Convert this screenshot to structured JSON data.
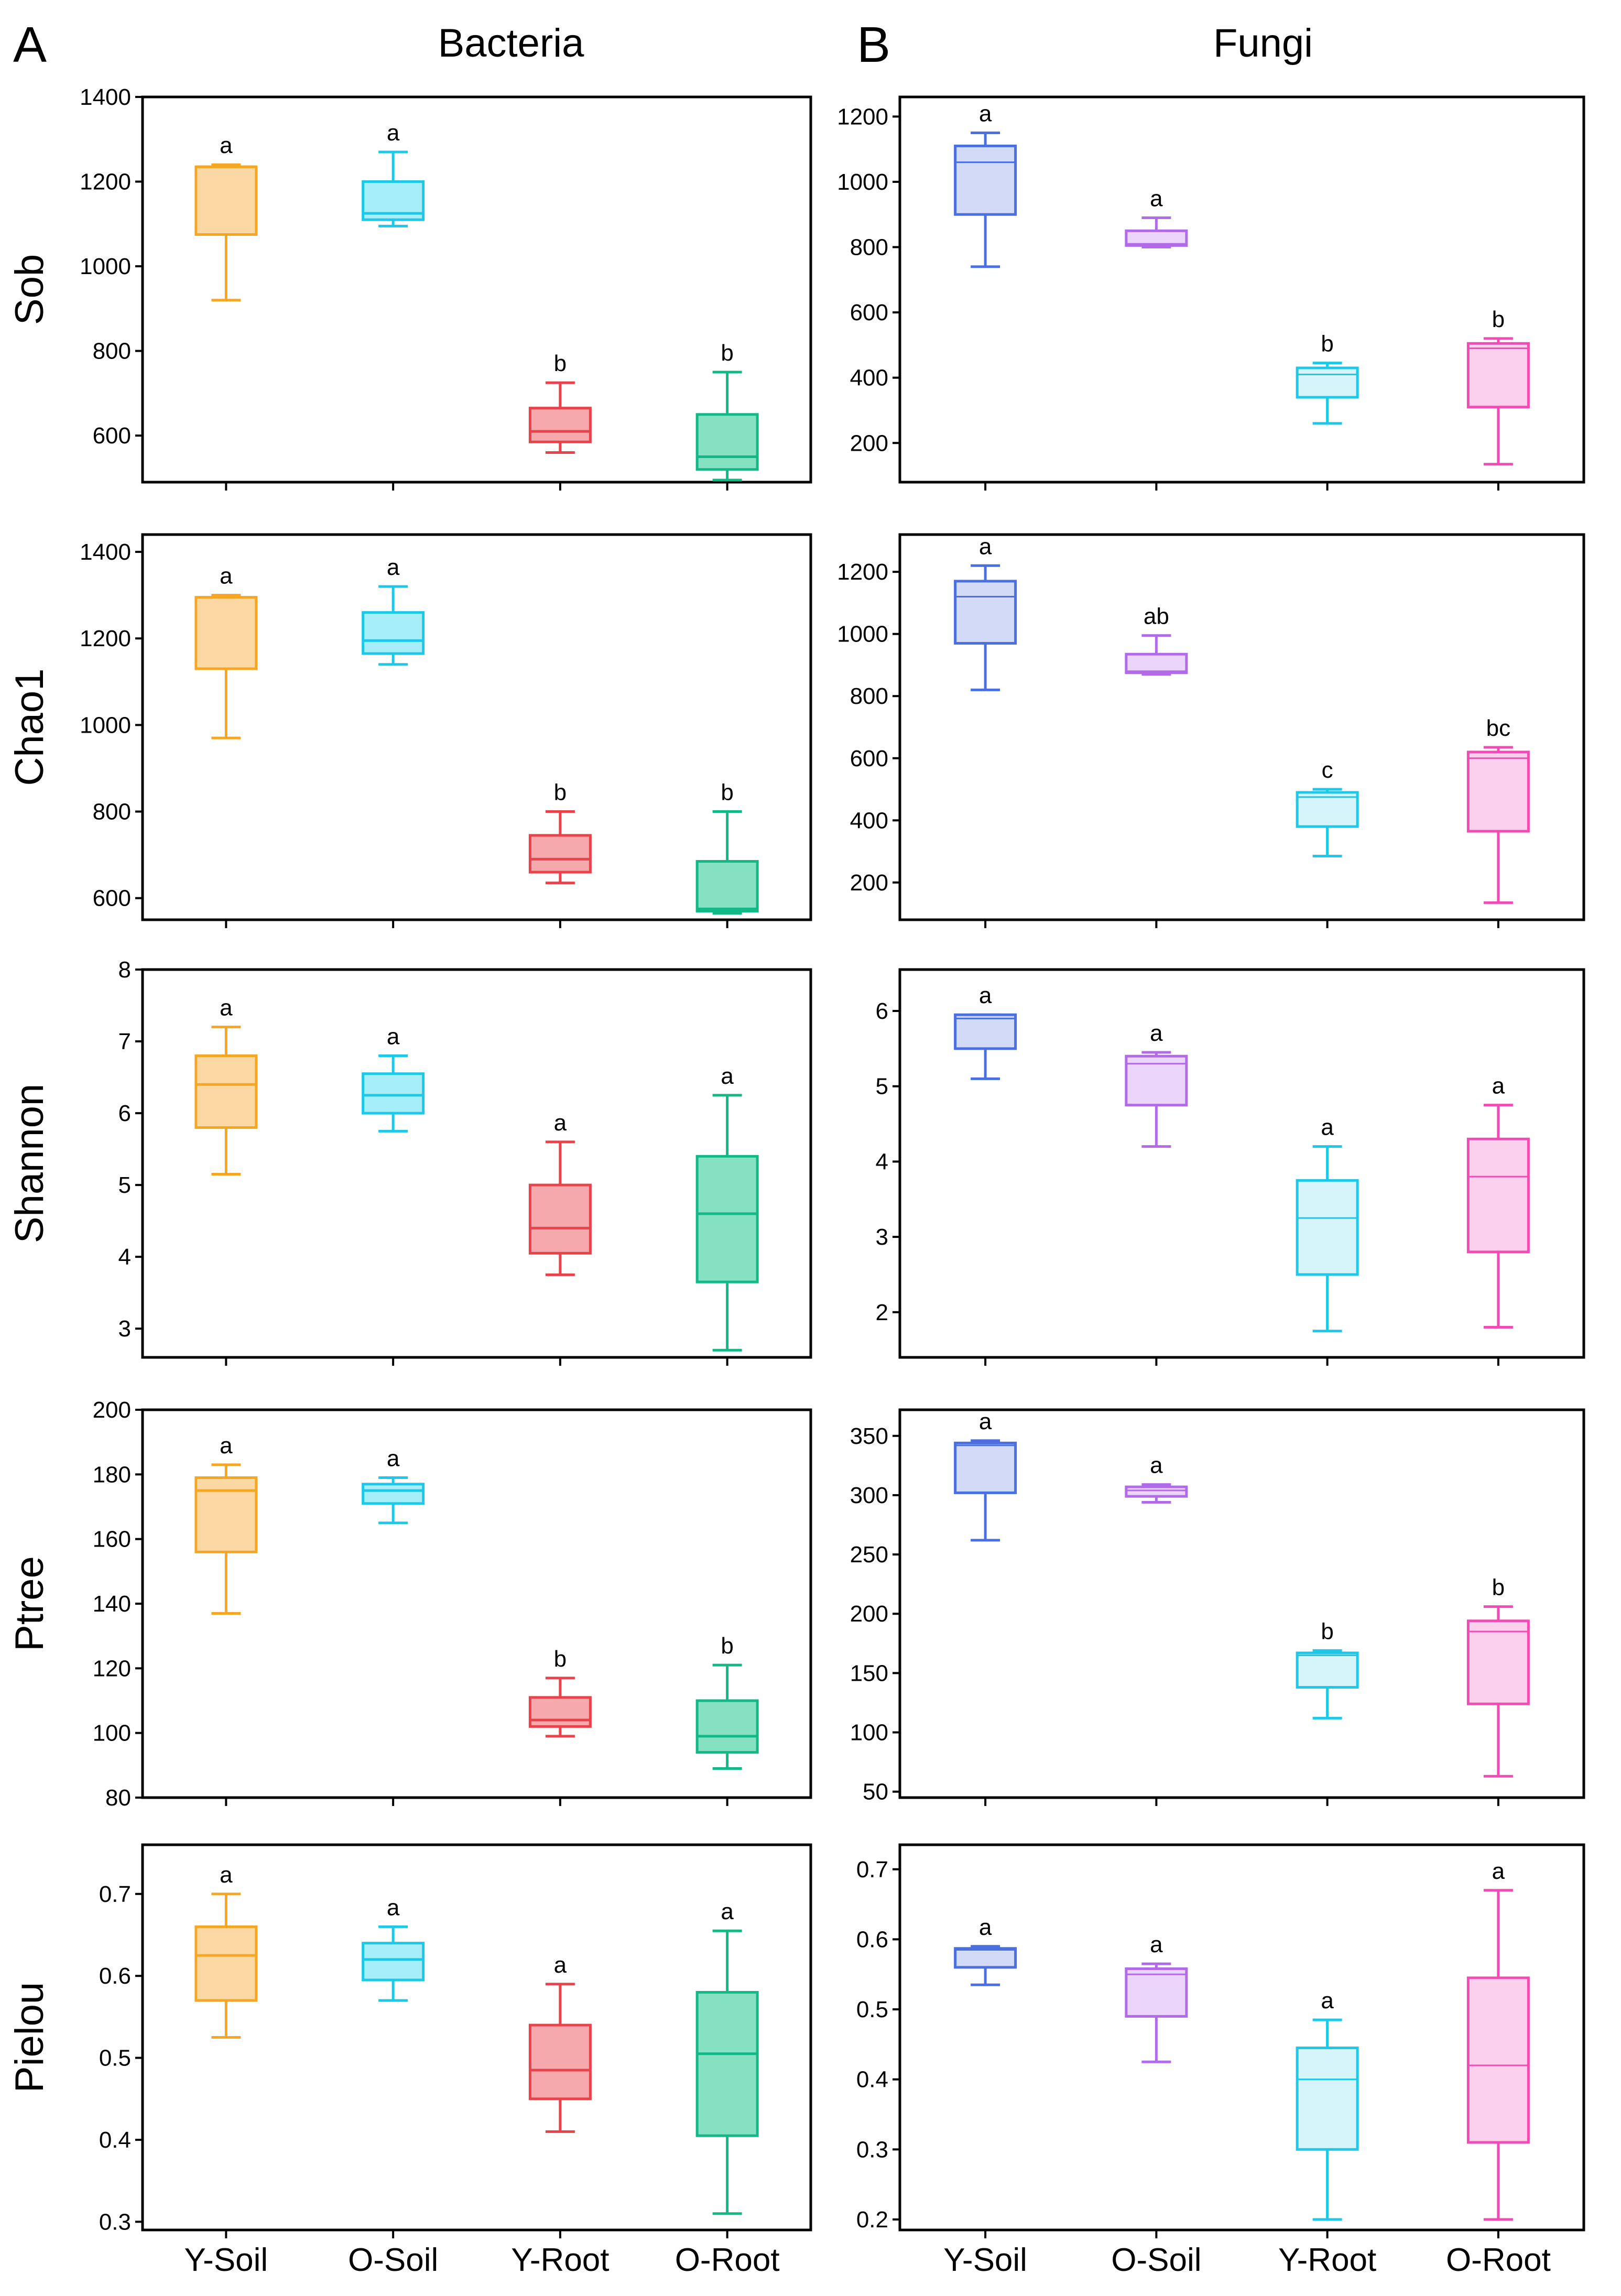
{
  "columns": [
    {
      "letter": "A",
      "title": "Bacteria"
    },
    {
      "letter": "B",
      "title": "Fungi"
    }
  ],
  "rows": [
    "Sob",
    "Chao1",
    "Shannon",
    "Ptree",
    "Pielou"
  ],
  "categories": [
    "Y-Soil",
    "O-Soil",
    "Y-Root",
    "O-Root"
  ],
  "colors": {
    "bacteria": [
      "#F5A623",
      "#1EC8E8",
      "#E8424A",
      "#12B886"
    ],
    "bacteria_fill": [
      "#FCD9A4",
      "#A6EEF8",
      "#F6A9AD",
      "#86E0C2"
    ],
    "fungi": [
      "#4A6FE0",
      "#B26BE8",
      "#1EC8E8",
      "#F04CB4"
    ],
    "fungi_fill": [
      "#D2DAF8",
      "#EBD5FA",
      "#D6F5FB",
      "#FBD0EC"
    ]
  },
  "chart_data": [
    {
      "type": "box",
      "column": "Bacteria",
      "metric": "Sob",
      "ylabel": "Sob",
      "ylim": [
        490,
        1400
      ],
      "yticks": [
        600,
        800,
        1000,
        1200,
        1400
      ],
      "categories": [
        "Y-Soil",
        "O-Soil",
        "Y-Root",
        "O-Root"
      ],
      "boxes": [
        {
          "min": 920,
          "q1": 1075,
          "median": 1235,
          "q3": 1235,
          "max": 1240,
          "letter": "a"
        },
        {
          "min": 1095,
          "q1": 1110,
          "median": 1125,
          "q3": 1200,
          "max": 1270,
          "letter": "a"
        },
        {
          "min": 560,
          "q1": 585,
          "median": 610,
          "q3": 665,
          "max": 725,
          "letter": "b"
        },
        {
          "min": 495,
          "q1": 520,
          "median": 550,
          "q3": 650,
          "max": 750,
          "letter": "b"
        }
      ]
    },
    {
      "type": "box",
      "column": "Bacteria",
      "metric": "Chao1",
      "ylabel": "Chao1",
      "ylim": [
        550,
        1440
      ],
      "yticks": [
        600,
        800,
        1000,
        1200,
        1400
      ],
      "categories": [
        "Y-Soil",
        "O-Soil",
        "Y-Root",
        "O-Root"
      ],
      "boxes": [
        {
          "min": 970,
          "q1": 1130,
          "median": 1295,
          "q3": 1295,
          "max": 1300,
          "letter": "a"
        },
        {
          "min": 1140,
          "q1": 1165,
          "median": 1195,
          "q3": 1260,
          "max": 1320,
          "letter": "a"
        },
        {
          "min": 635,
          "q1": 660,
          "median": 690,
          "q3": 745,
          "max": 800,
          "letter": "b"
        },
        {
          "min": 565,
          "q1": 570,
          "median": 575,
          "q3": 685,
          "max": 800,
          "letter": "b"
        }
      ]
    },
    {
      "type": "box",
      "column": "Bacteria",
      "metric": "Shannon",
      "ylabel": "Shannon",
      "ylim": [
        2.6,
        8
      ],
      "yticks": [
        3,
        4,
        5,
        6,
        7,
        8
      ],
      "categories": [
        "Y-Soil",
        "O-Soil",
        "Y-Root",
        "O-Root"
      ],
      "boxes": [
        {
          "min": 5.15,
          "q1": 5.8,
          "median": 6.4,
          "q3": 6.8,
          "max": 7.2,
          "letter": "a"
        },
        {
          "min": 5.75,
          "q1": 6.0,
          "median": 6.25,
          "q3": 6.55,
          "max": 6.8,
          "letter": "a"
        },
        {
          "min": 3.75,
          "q1": 4.05,
          "median": 4.4,
          "q3": 5.0,
          "max": 5.6,
          "letter": "a"
        },
        {
          "min": 2.7,
          "q1": 3.65,
          "median": 4.6,
          "q3": 5.4,
          "max": 6.25,
          "letter": "a"
        }
      ]
    },
    {
      "type": "box",
      "column": "Bacteria",
      "metric": "Ptree",
      "ylabel": "Ptree",
      "ylim": [
        80,
        200
      ],
      "yticks": [
        80,
        100,
        120,
        140,
        160,
        180,
        200
      ],
      "categories": [
        "Y-Soil",
        "O-Soil",
        "Y-Root",
        "O-Root"
      ],
      "boxes": [
        {
          "min": 137,
          "q1": 156,
          "median": 175,
          "q3": 179,
          "max": 183,
          "letter": "a"
        },
        {
          "min": 165,
          "q1": 171,
          "median": 175,
          "q3": 177,
          "max": 179,
          "letter": "a"
        },
        {
          "min": 99,
          "q1": 102,
          "median": 104,
          "q3": 111,
          "max": 117,
          "letter": "b"
        },
        {
          "min": 89,
          "q1": 94,
          "median": 99,
          "q3": 110,
          "max": 121,
          "letter": "b"
        }
      ]
    },
    {
      "type": "box",
      "column": "Bacteria",
      "metric": "Pielou",
      "ylabel": "Pielou",
      "ylim": [
        0.29,
        0.76
      ],
      "yticks": [
        0.3,
        0.4,
        0.5,
        0.6,
        0.7
      ],
      "categories": [
        "Y-Soil",
        "O-Soil",
        "Y-Root",
        "O-Root"
      ],
      "boxes": [
        {
          "min": 0.525,
          "q1": 0.57,
          "median": 0.625,
          "q3": 0.66,
          "max": 0.7,
          "letter": "a"
        },
        {
          "min": 0.57,
          "q1": 0.595,
          "median": 0.62,
          "q3": 0.64,
          "max": 0.66,
          "letter": "a"
        },
        {
          "min": 0.41,
          "q1": 0.45,
          "median": 0.485,
          "q3": 0.54,
          "max": 0.59,
          "letter": "a"
        },
        {
          "min": 0.31,
          "q1": 0.405,
          "median": 0.505,
          "q3": 0.58,
          "max": 0.655,
          "letter": "a"
        }
      ]
    },
    {
      "type": "box",
      "column": "Fungi",
      "metric": "Sob",
      "ylabel": "",
      "ylim": [
        80,
        1260
      ],
      "yticks": [
        200,
        400,
        600,
        800,
        1000,
        1200
      ],
      "categories": [
        "Y-Soil",
        "O-Soil",
        "Y-Root",
        "O-Root"
      ],
      "boxes": [
        {
          "min": 740,
          "q1": 900,
          "median": 1060,
          "q3": 1110,
          "max": 1150,
          "letter": "a"
        },
        {
          "min": 800,
          "q1": 805,
          "median": 810,
          "q3": 850,
          "max": 890,
          "letter": "a"
        },
        {
          "min": 260,
          "q1": 340,
          "median": 410,
          "q3": 430,
          "max": 445,
          "letter": "b"
        },
        {
          "min": 135,
          "q1": 310,
          "median": 490,
          "q3": 505,
          "max": 520,
          "letter": "b"
        }
      ]
    },
    {
      "type": "box",
      "column": "Fungi",
      "metric": "Chao1",
      "ylabel": "",
      "ylim": [
        80,
        1320
      ],
      "yticks": [
        200,
        400,
        600,
        800,
        1000,
        1200
      ],
      "categories": [
        "Y-Soil",
        "O-Soil",
        "Y-Root",
        "O-Root"
      ],
      "boxes": [
        {
          "min": 820,
          "q1": 970,
          "median": 1120,
          "q3": 1170,
          "max": 1220,
          "letter": "a"
        },
        {
          "min": 870,
          "q1": 875,
          "median": 880,
          "q3": 935,
          "max": 995,
          "letter": "ab"
        },
        {
          "min": 285,
          "q1": 380,
          "median": 475,
          "q3": 490,
          "max": 500,
          "letter": "c"
        },
        {
          "min": 135,
          "q1": 365,
          "median": 600,
          "q3": 620,
          "max": 635,
          "letter": "bc"
        }
      ]
    },
    {
      "type": "box",
      "column": "Fungi",
      "metric": "Shannon",
      "ylabel": "",
      "ylim": [
        1.4,
        6.55
      ],
      "yticks": [
        2,
        3,
        4,
        5,
        6
      ],
      "categories": [
        "Y-Soil",
        "O-Soil",
        "Y-Root",
        "O-Root"
      ],
      "boxes": [
        {
          "min": 5.1,
          "q1": 5.5,
          "median": 5.9,
          "q3": 5.95,
          "max": 5.95,
          "letter": "a"
        },
        {
          "min": 4.2,
          "q1": 4.75,
          "median": 5.3,
          "q3": 5.4,
          "max": 5.45,
          "letter": "a"
        },
        {
          "min": 1.75,
          "q1": 2.5,
          "median": 3.25,
          "q3": 3.75,
          "max": 4.2,
          "letter": "a"
        },
        {
          "min": 1.8,
          "q1": 2.8,
          "median": 3.8,
          "q3": 4.3,
          "max": 4.75,
          "letter": "a"
        }
      ]
    },
    {
      "type": "box",
      "column": "Fungi",
      "metric": "Ptree",
      "ylabel": "",
      "ylim": [
        45,
        372
      ],
      "yticks": [
        50,
        100,
        150,
        200,
        250,
        300,
        350
      ],
      "categories": [
        "Y-Soil",
        "O-Soil",
        "Y-Root",
        "O-Root"
      ],
      "boxes": [
        {
          "min": 262,
          "q1": 302,
          "median": 342,
          "q3": 344,
          "max": 346,
          "letter": "a"
        },
        {
          "min": 294,
          "q1": 299,
          "median": 304,
          "q3": 307,
          "max": 309,
          "letter": "a"
        },
        {
          "min": 112,
          "q1": 138,
          "median": 165,
          "q3": 167,
          "max": 169,
          "letter": "b"
        },
        {
          "min": 63,
          "q1": 124,
          "median": 185,
          "q3": 194,
          "max": 206,
          "letter": "b"
        }
      ]
    },
    {
      "type": "box",
      "column": "Fungi",
      "metric": "Pielou",
      "ylabel": "",
      "ylim": [
        0.185,
        0.735
      ],
      "yticks": [
        0.2,
        0.3,
        0.4,
        0.5,
        0.6,
        0.7
      ],
      "categories": [
        "Y-Soil",
        "O-Soil",
        "Y-Root",
        "O-Root"
      ],
      "boxes": [
        {
          "min": 0.535,
          "q1": 0.56,
          "median": 0.585,
          "q3": 0.587,
          "max": 0.59,
          "letter": "a"
        },
        {
          "min": 0.425,
          "q1": 0.49,
          "median": 0.55,
          "q3": 0.558,
          "max": 0.565,
          "letter": "a"
        },
        {
          "min": 0.2,
          "q1": 0.3,
          "median": 0.4,
          "q3": 0.445,
          "max": 0.485,
          "letter": "a"
        },
        {
          "min": 0.2,
          "q1": 0.31,
          "median": 0.42,
          "q3": 0.545,
          "max": 0.67,
          "letter": "a"
        }
      ]
    }
  ]
}
